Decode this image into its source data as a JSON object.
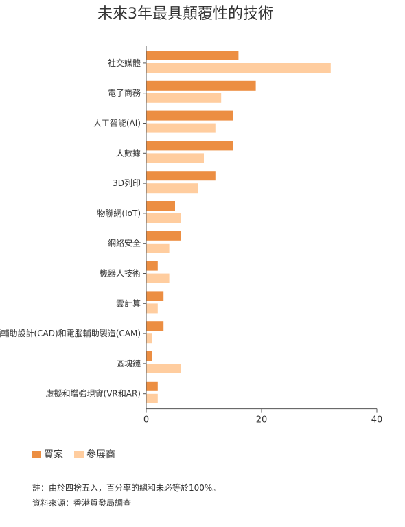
{
  "title": "未來3年最具顛覆性的技術",
  "chart_data": {
    "type": "bar",
    "orientation": "horizontal",
    "categories": [
      "社交媒體",
      "電子商務",
      "人工智能(AI)",
      "大數據",
      "3D列印",
      "物聯網(IoT)",
      "網絡安全",
      "機器人技術",
      "雲計算",
      "電腦輔助設計(CAD)和電腦輔助製造(CAM)",
      "區塊鏈",
      "虛擬和增強現實(VR和AR)"
    ],
    "series": [
      {
        "name": "買家",
        "color": "#ec8e42",
        "values": [
          16,
          19,
          15,
          15,
          12,
          5,
          6,
          2,
          3,
          3,
          1,
          2
        ]
      },
      {
        "name": "參展商",
        "color": "#ffcd9f",
        "values": [
          32,
          13,
          12,
          10,
          9,
          6,
          4,
          4,
          2,
          1,
          6,
          2
        ]
      }
    ],
    "xlim": [
      0,
      40
    ],
    "xticks": [
      0,
      20,
      40
    ],
    "legend_position": "bottom-left",
    "grid": false
  },
  "notes": {
    "line1": "註：由於四捨五入，百分率的總和未必等於100%。",
    "line2": "資料來源：香港貿發局調查"
  }
}
